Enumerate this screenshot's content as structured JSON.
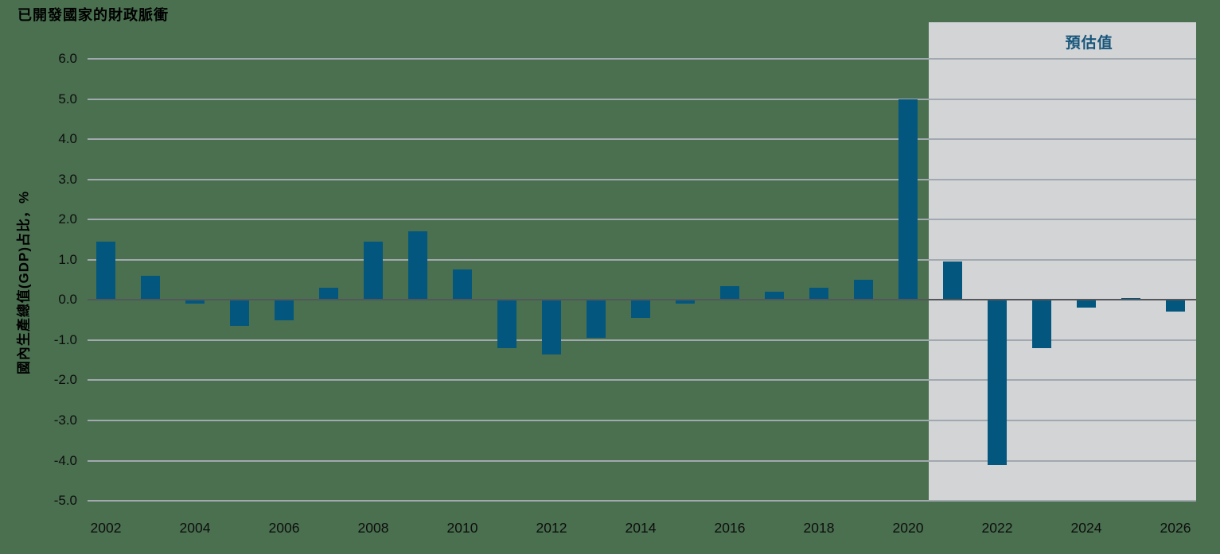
{
  "colors": {
    "background": "#4A7050",
    "bar": "#03577E",
    "gridline": "#A2A8AF",
    "zero_line": "#54565B",
    "forecast_box": "#D2D4D6",
    "forecast_label_text": "#17567B",
    "text": "#000000"
  },
  "chart_data": {
    "type": "bar",
    "title": "已開發國家的財政脈衝",
    "ylabel": "國內生產總值(GDP)占比，%",
    "xlabel": "",
    "ylim": [
      -5.0,
      6.0
    ],
    "ytick_labels": [
      "6.0",
      "5.0",
      "4.0",
      "3.0",
      "2.0",
      "1.0",
      "0.0",
      "-1.0",
      "-2.0",
      "-3.0",
      "-4.0",
      "-5.0"
    ],
    "categories": [
      2002,
      2003,
      2004,
      2005,
      2006,
      2007,
      2008,
      2009,
      2010,
      2011,
      2012,
      2013,
      2014,
      2015,
      2016,
      2017,
      2018,
      2019,
      2020,
      2021,
      2022,
      2023,
      2024,
      2025,
      2026
    ],
    "values": [
      1.45,
      0.6,
      -0.1,
      -0.65,
      -0.5,
      0.3,
      1.45,
      1.7,
      0.75,
      -1.2,
      -1.35,
      -0.95,
      -0.45,
      -0.1,
      0.35,
      0.2,
      0.3,
      0.5,
      5.0,
      0.95,
      -4.1,
      -1.2,
      -0.2,
      0.05,
      -0.3
    ],
    "xtick_labels": [
      "2002",
      "2004",
      "2006",
      "2008",
      "2010",
      "2012",
      "2014",
      "2016",
      "2018",
      "2020",
      "2022",
      "2024",
      "2026"
    ],
    "forecast": {
      "label": "預估值",
      "start_year": 2021,
      "end_year": 2026
    },
    "legend": "none",
    "grid": "horizontal"
  }
}
